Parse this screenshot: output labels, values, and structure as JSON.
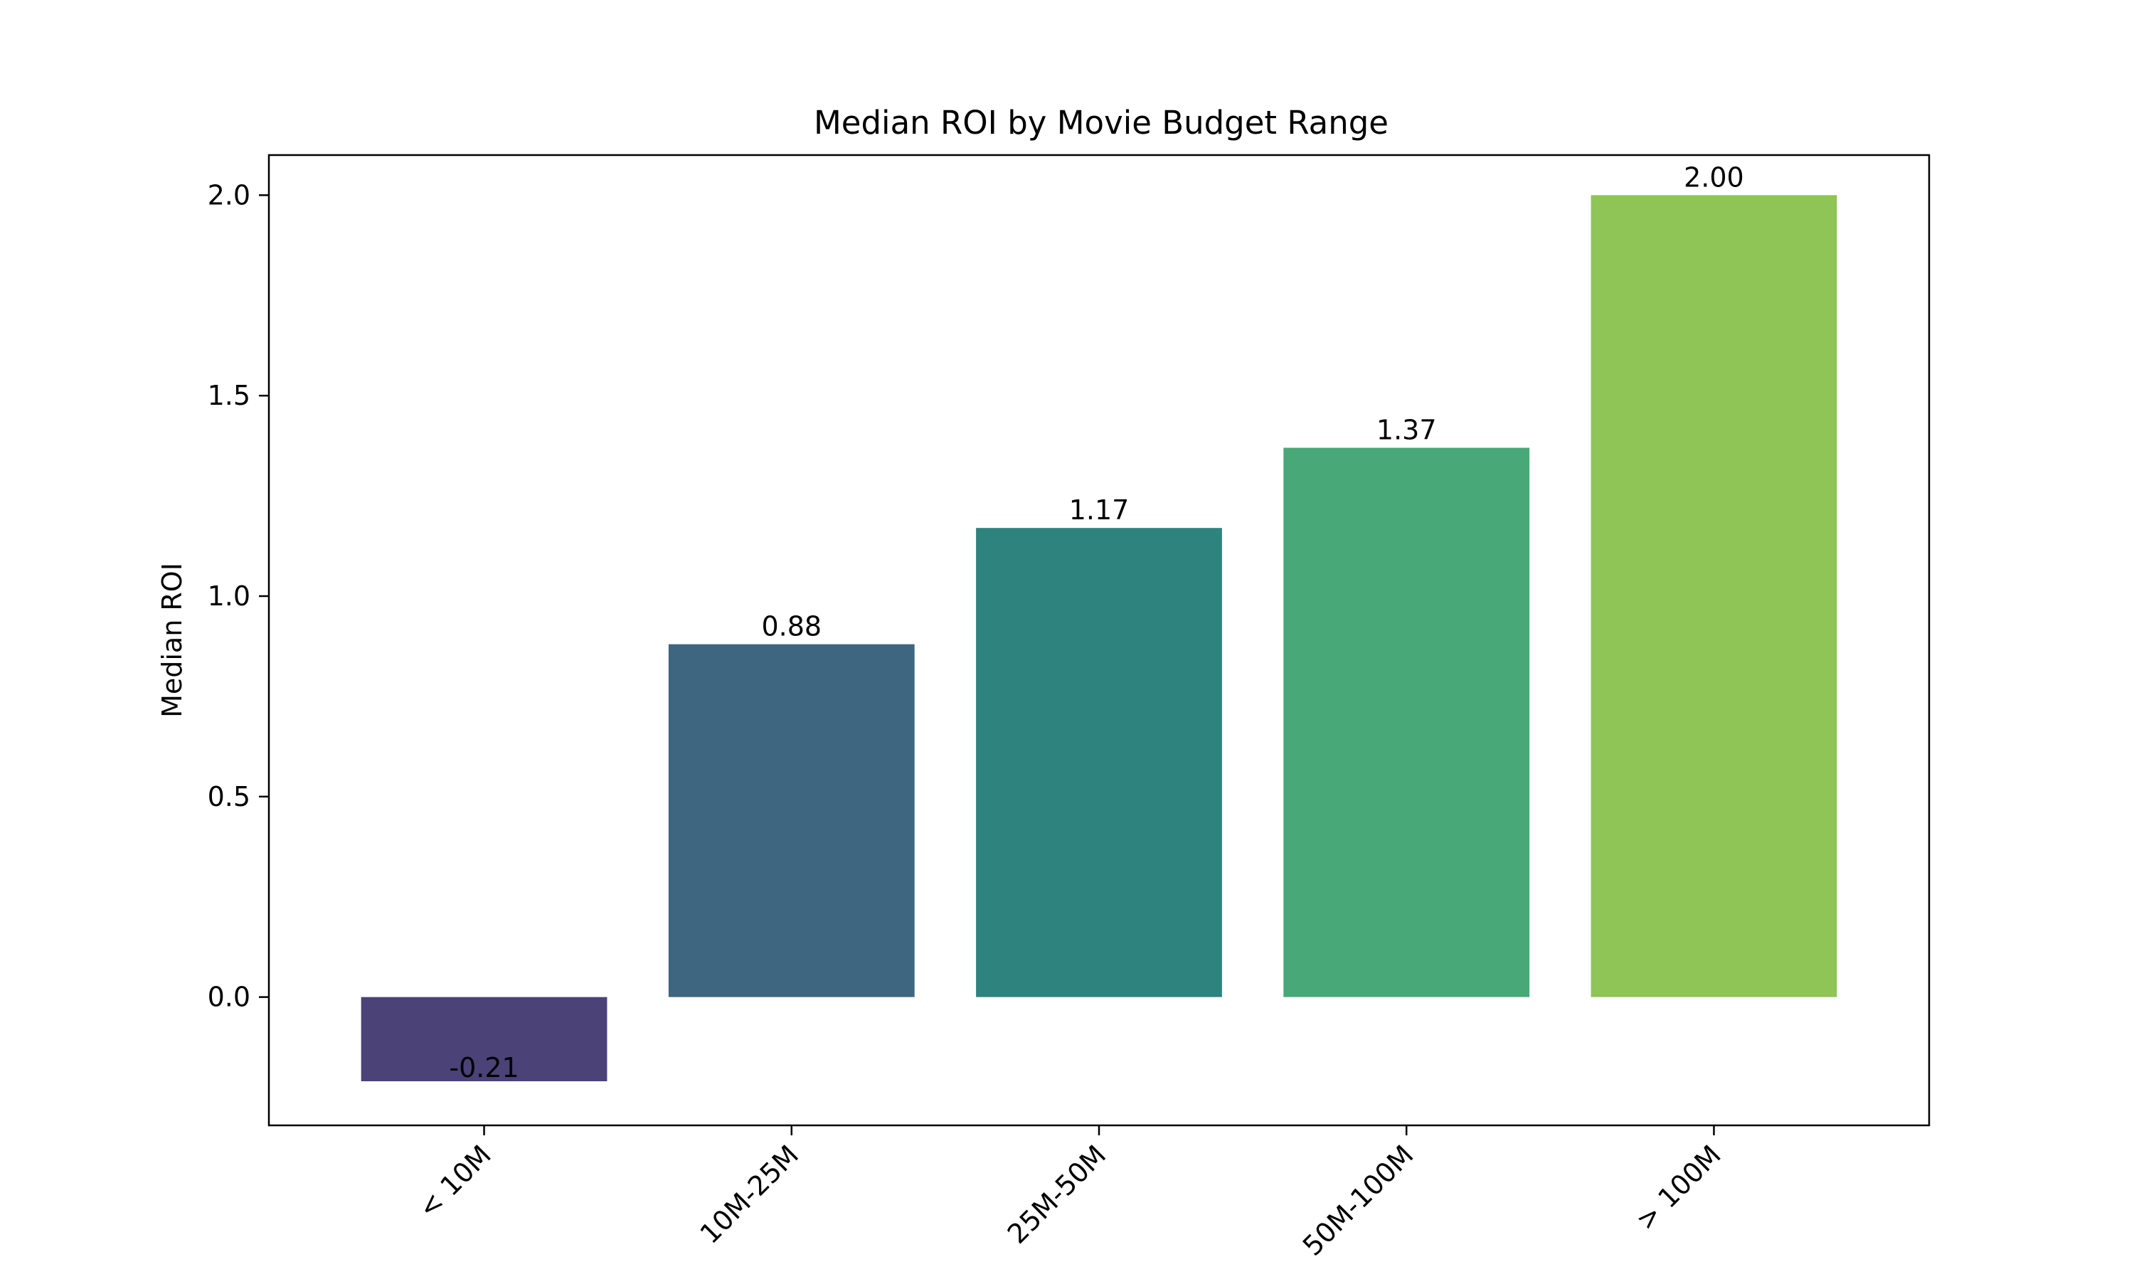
{
  "chart_data": {
    "type": "bar",
    "title": "Median ROI by Movie Budget Range",
    "xlabel": "",
    "ylabel": "Median ROI",
    "categories": [
      "< 10M",
      "10M-25M",
      "25M-50M",
      "50M-100M",
      "> 100M"
    ],
    "values": [
      -0.21,
      0.88,
      1.17,
      1.37,
      2.0
    ],
    "value_labels": [
      "-0.21",
      "0.88",
      "1.17",
      "1.37",
      "2.00"
    ],
    "colors": [
      "#4b4278",
      "#3e6680",
      "#2e837e",
      "#48a878",
      "#8ec556"
    ],
    "ylim": [
      -0.32,
      2.1
    ],
    "yticks": [
      0.0,
      0.5,
      1.0,
      1.5,
      2.0
    ],
    "ytick_labels": [
      "0.0",
      "0.5",
      "1.0",
      "1.5",
      "2.0"
    ],
    "grid": false,
    "legend": "none"
  }
}
